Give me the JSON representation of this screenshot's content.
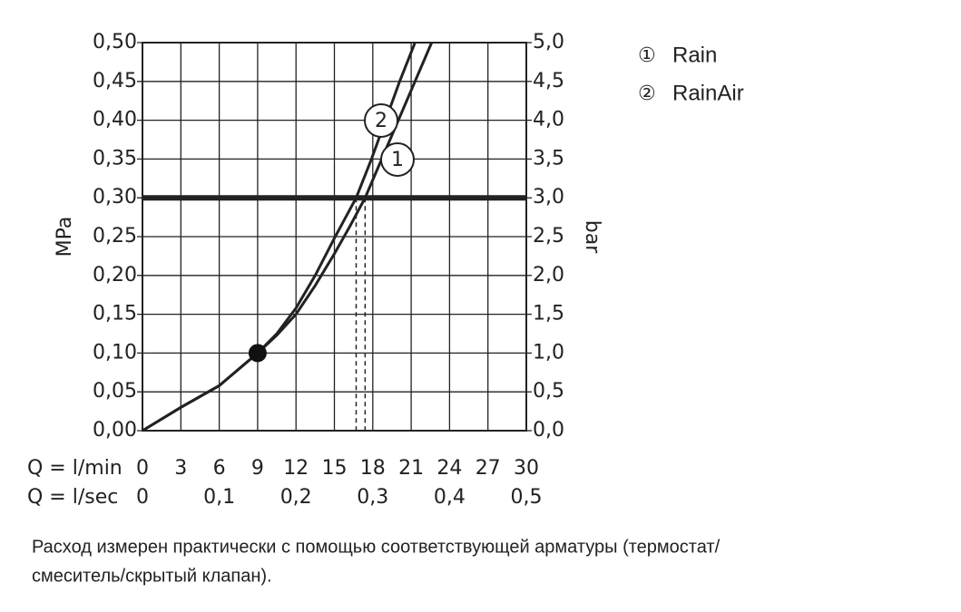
{
  "chart_data": {
    "type": "line",
    "ylabel": "MPa",
    "y2label": "bar",
    "xlabel": "Q = l/min",
    "x2label": "Q = l/sec",
    "xlim": [
      0,
      30
    ],
    "xticks": [
      0,
      3,
      6,
      9,
      12,
      15,
      18,
      21,
      24,
      27,
      30
    ],
    "x2lim": [
      0,
      0.5
    ],
    "x2ticks": [
      {
        "value": 0,
        "label": "0"
      },
      {
        "value": 0.1,
        "label": "0,1"
      },
      {
        "value": 0.2,
        "label": "0,2"
      },
      {
        "value": 0.3,
        "label": "0,3"
      },
      {
        "value": 0.4,
        "label": "0,4"
      },
      {
        "value": 0.5,
        "label": "0,5"
      }
    ],
    "ylim": [
      0,
      0.5
    ],
    "yticks": [
      {
        "value": 0,
        "label": "0,00"
      },
      {
        "value": 0.05,
        "label": "0,05"
      },
      {
        "value": 0.1,
        "label": "0,10"
      },
      {
        "value": 0.15,
        "label": "0,15"
      },
      {
        "value": 0.2,
        "label": "0,20"
      },
      {
        "value": 0.25,
        "label": "0,25"
      },
      {
        "value": 0.3,
        "label": "0,30"
      },
      {
        "value": 0.35,
        "label": "0,35"
      },
      {
        "value": 0.4,
        "label": "0,40"
      },
      {
        "value": 0.45,
        "label": "0,45"
      },
      {
        "value": 0.5,
        "label": "0,50"
      }
    ],
    "y2lim": [
      0,
      5
    ],
    "y2ticks": [
      {
        "value": 0,
        "label": "0,0"
      },
      {
        "value": 0.5,
        "label": "0,5"
      },
      {
        "value": 1,
        "label": "1,0"
      },
      {
        "value": 1.5,
        "label": "1,5"
      },
      {
        "value": 2,
        "label": "2,0"
      },
      {
        "value": 2.5,
        "label": "2,5"
      },
      {
        "value": 3,
        "label": "3,0"
      },
      {
        "value": 3.5,
        "label": "3,5"
      },
      {
        "value": 4,
        "label": "4,0"
      },
      {
        "value": 4.5,
        "label": "4,5"
      },
      {
        "value": 5,
        "label": "5,0"
      }
    ],
    "grid": true,
    "reference_y": 0.3,
    "dashed_x": [
      16.7,
      17.4
    ],
    "marker_point": {
      "x": 9,
      "y": 0.1
    },
    "series": [
      {
        "name": "Rain",
        "symbol": "①",
        "curve_label": "1",
        "color": "#222222",
        "x": [
          0,
          3,
          6,
          9,
          10.5,
          12,
          13.5,
          15,
          16.2,
          17.4,
          18.7,
          20,
          21.3,
          22.6
        ],
        "values": [
          0,
          0.03,
          0.058,
          0.1,
          0.123,
          0.15,
          0.187,
          0.228,
          0.263,
          0.3,
          0.35,
          0.4,
          0.45,
          0.5
        ]
      },
      {
        "name": "RainAir",
        "symbol": "②",
        "curve_label": "2",
        "color": "#222222",
        "x": [
          0,
          3,
          6,
          9,
          10.5,
          12,
          13.5,
          15,
          16.7,
          17.9,
          19,
          20.1,
          21.3
        ],
        "values": [
          0,
          0.03,
          0.058,
          0.1,
          0.125,
          0.158,
          0.2,
          0.248,
          0.3,
          0.35,
          0.4,
          0.45,
          0.5
        ]
      }
    ],
    "footnote": [
      "Расход измерен практически с помощью соответствующей арматуры (термостат/",
      "смеситель/скрытый клапан)."
    ]
  }
}
